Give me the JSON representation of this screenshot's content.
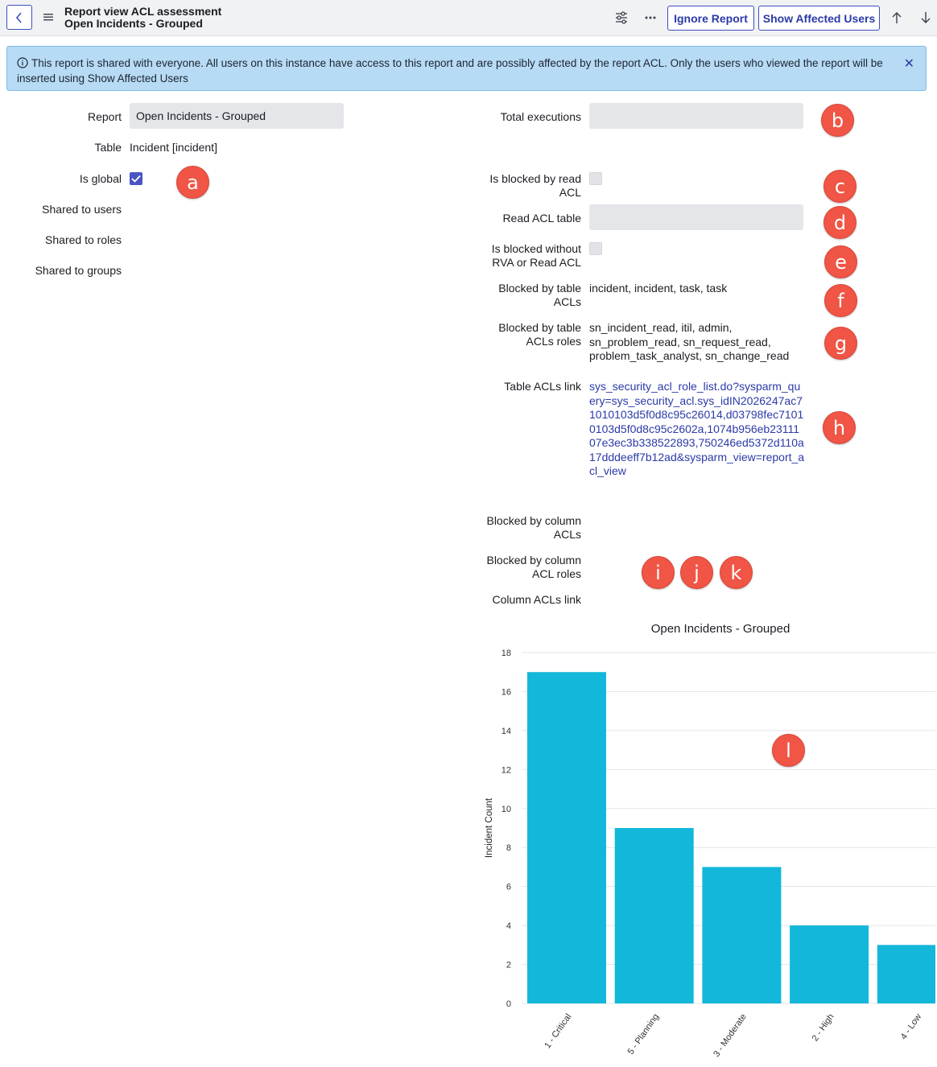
{
  "header": {
    "title": "Report view ACL assessment",
    "subtitle": "Open Incidents - Grouped",
    "ignore_button": "Ignore Report",
    "affected_button": "Show Affected Users"
  },
  "banner": {
    "icon": "info-icon",
    "text": "This report is shared with everyone. All users on this instance have access to this report and are possibly affected by the report ACL. Only the users who viewed the report will be inserted using Show Affected Users"
  },
  "left_form": {
    "report_label": "Report",
    "report_value": "Open Incidents - Grouped",
    "table_label": "Table",
    "table_value": "Incident [incident]",
    "is_global_label": "Is global",
    "is_global": true,
    "shared_users_label": "Shared to users",
    "shared_roles_label": "Shared to roles",
    "shared_groups_label": "Shared to groups"
  },
  "right_form": {
    "total_exec_label": "Total executions",
    "total_exec_value": "",
    "blocked_read_label": "Is blocked by read ACL",
    "blocked_read": false,
    "read_acl_table_label": "Read ACL table",
    "read_acl_table_value": "",
    "blocked_rva_label": "Is blocked without RVA or Read ACL",
    "blocked_rva": false,
    "blocked_table_acls_label": "Blocked by table ACLs",
    "blocked_table_acls_value": "incident, incident, task, task",
    "blocked_table_roles_label": "Blocked by table ACLs roles",
    "blocked_table_roles_value": "sn_incident_read, itil, admin, sn_problem_read, sn_request_read, problem_task_analyst, sn_change_read",
    "table_acls_link_label": "Table ACLs link",
    "table_acls_link_value": "sys_security_acl_role_list.do?sysparm_query=sys_security_acl.sys_idIN2026247ac71010103d5f0d8c95c26014,d03798fec71010103d5f0d8c95c2602a,1074b956eb2311107e3ec3b338522893,750246ed5372d110a17dddeeff7b12ad&sysparm_view=report_acl_view",
    "blocked_col_acls_label": "Blocked by column ACLs",
    "blocked_col_roles_label": "Blocked by column ACL roles",
    "col_acls_link_label": "Column ACLs link"
  },
  "markers": {
    "a": "a",
    "b": "b",
    "c": "c",
    "d": "d",
    "e": "e",
    "f": "f",
    "g": "g",
    "h": "h",
    "i": "i",
    "j": "j",
    "k": "k",
    "l": "l"
  },
  "colors": {
    "accent": "#3d4dbf",
    "banner": "#b7dbf5",
    "bar": "#13b7d9",
    "marker": "#f05545"
  },
  "chart_data": {
    "type": "bar",
    "title": "Open Incidents - Grouped",
    "xlabel": "",
    "ylabel": "Incident Count",
    "categories": [
      "1 - Critical",
      "5 - Planning",
      "3 - Moderate",
      "2 - High",
      "4 - Low"
    ],
    "values": [
      17,
      9,
      7,
      4,
      3
    ],
    "ylim": [
      0,
      18
    ],
    "yticks": [
      0,
      2,
      4,
      6,
      8,
      10,
      12,
      14,
      16,
      18
    ],
    "grid": true
  }
}
